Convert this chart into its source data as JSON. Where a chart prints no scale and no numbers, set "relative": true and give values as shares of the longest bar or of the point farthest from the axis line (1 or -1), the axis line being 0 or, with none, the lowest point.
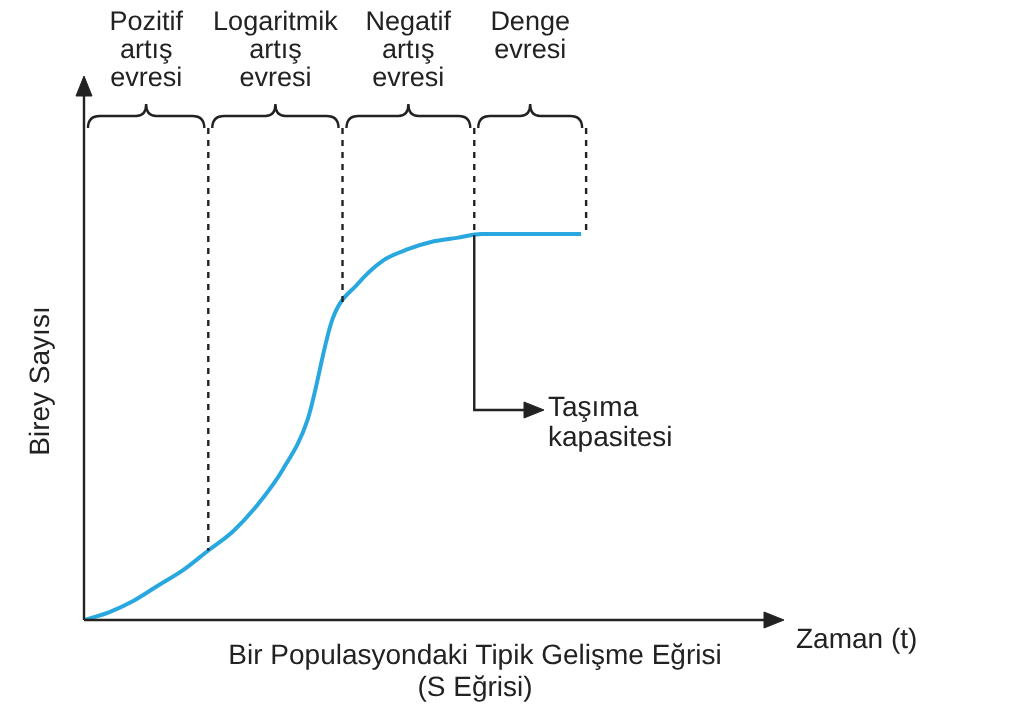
{
  "chart_data": {
    "type": "line",
    "relative": true,
    "title": "Bir Populasyondaki Tipik Gelişme Eğrisi",
    "subtitle": "(S Eğrisi)",
    "xlabel": "Zaman (t)",
    "ylabel": "Birey Sayısı",
    "categories": [
      null,
      null,
      null,
      null,
      null,
      null,
      null,
      null,
      null,
      null,
      null,
      null,
      null,
      null,
      null,
      null,
      null,
      null,
      null,
      null,
      null,
      null,
      null,
      null,
      null,
      null,
      null,
      null,
      null
    ],
    "series": [
      {
        "color": "#29a8e0",
        "values": [
          0,
          0.02,
          0.05,
          0.09,
          0.13,
          0.18,
          0.23,
          0.3,
          0.39,
          0.52,
          0.78,
          0.87,
          0.93,
          0.96,
          0.98,
          0.99,
          1,
          1,
          1,
          1,
          1,
          null,
          null,
          null,
          null,
          null,
          null,
          null,
          null
        ]
      }
    ],
    "annotations": [
      "Pozitif artış evresi",
      "Logaritmik artış evresi",
      "Negatif artış evresi",
      "Denge evresi",
      "Taşıma kapasitesi"
    ],
    "legend": false,
    "marker": "none",
    "line_style": "solid"
  }
}
